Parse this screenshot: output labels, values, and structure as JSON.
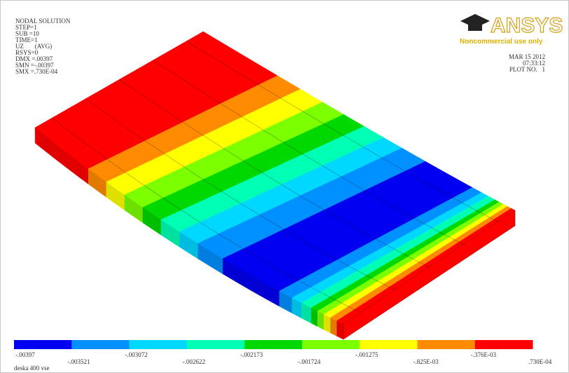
{
  "header": {
    "lines": [
      "NODAL SOLUTION",
      "STEP=1",
      "SUB =10",
      "TIME=1",
      "UZ       (AVG)",
      "RSYS=0",
      "DMX =.00397",
      "SMN =-.00397",
      "SMX =.730E-04"
    ]
  },
  "logo": {
    "brand": "ANSYS",
    "note": "Noncommercial use only"
  },
  "stamp": {
    "date": "MAR 15 2012",
    "time": "07:33:12",
    "plot": "PLOT NO.   1"
  },
  "legend": {
    "colors": [
      "#0000f0",
      "#0090ff",
      "#00d8ff",
      "#00ffb4",
      "#00d800",
      "#7cff00",
      "#ffff00",
      "#ff8c00",
      "#ff0000"
    ],
    "labels": [
      "-.00397",
      "-.003521",
      "-.003072",
      "-.002622",
      "-.002173",
      "-.001724",
      "-.001275",
      "-.825E-03",
      "-.376E-03",
      ".730E-04"
    ]
  },
  "footer": "deska 400 vse"
}
